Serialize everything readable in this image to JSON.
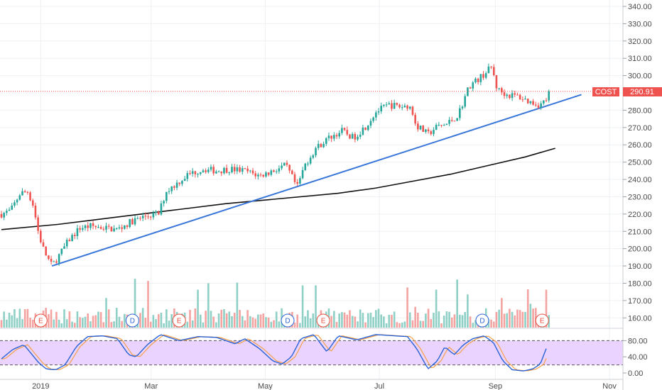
{
  "chart_data": {
    "type": "candlestick",
    "symbol": "COST",
    "last_price": 290.91,
    "last_price_label": "290.91",
    "colors": {
      "up": "#26a69a",
      "down": "#ef5350",
      "trendline": "#3a77d9",
      "ma": "#111111",
      "stoch_k": "#2a62d6",
      "stoch_d": "#f5a04a",
      "stoch_band": "#e6ccff",
      "price_line": "#ef5350",
      "vol_up": "#8fd0c6",
      "vol_down": "#f4a3a0"
    },
    "y_axis": {
      "ticks": [
        "340.00",
        "330.00",
        "320.00",
        "310.00",
        "300.00",
        "290.00",
        "280.00",
        "270.00",
        "260.00",
        "250.00",
        "240.00",
        "230.00",
        "220.00",
        "210.00",
        "200.00",
        "190.00",
        "180.00",
        "170.00",
        "160.00"
      ],
      "ylim": [
        156,
        342
      ]
    },
    "oscillator_axis": {
      "ticks": [
        "80.00",
        "40.00",
        "0.00"
      ],
      "levels": [
        80,
        20
      ],
      "ylim": [
        0,
        100
      ]
    },
    "x_axis": {
      "ticks": [
        {
          "label": "2019",
          "day": 21
        },
        {
          "label": "Mar",
          "day": 80
        },
        {
          "label": "May",
          "day": 141
        },
        {
          "label": "Jul",
          "day": 202
        },
        {
          "label": "Sep",
          "day": 264
        },
        {
          "label": "Nov",
          "day": 325
        }
      ],
      "xlim": [
        0,
        330
      ]
    },
    "anchors": [
      [
        0,
        220
      ],
      [
        5,
        222
      ],
      [
        10,
        232
      ],
      [
        14,
        233
      ],
      [
        17,
        225
      ],
      [
        20,
        208
      ],
      [
        23,
        198
      ],
      [
        27,
        190
      ],
      [
        32,
        198
      ],
      [
        36,
        205
      ],
      [
        42,
        212
      ],
      [
        48,
        213
      ],
      [
        55,
        212
      ],
      [
        62,
        211
      ],
      [
        70,
        216
      ],
      [
        78,
        219
      ],
      [
        84,
        220
      ],
      [
        88,
        233
      ],
      [
        94,
        238
      ],
      [
        100,
        243
      ],
      [
        108,
        246
      ],
      [
        115,
        245
      ],
      [
        122,
        246
      ],
      [
        130,
        245
      ],
      [
        138,
        242
      ],
      [
        145,
        245
      ],
      [
        152,
        248
      ],
      [
        156,
        240
      ],
      [
        158,
        235
      ],
      [
        162,
        248
      ],
      [
        168,
        258
      ],
      [
        175,
        264
      ],
      [
        182,
        268
      ],
      [
        188,
        264
      ],
      [
        195,
        271
      ],
      [
        200,
        279
      ],
      [
        207,
        283
      ],
      [
        214,
        282
      ],
      [
        218,
        283
      ],
      [
        222,
        271
      ],
      [
        228,
        266
      ],
      [
        232,
        270
      ],
      [
        238,
        272
      ],
      [
        244,
        277
      ],
      [
        250,
        294
      ],
      [
        255,
        298
      ],
      [
        260,
        303
      ],
      [
        262,
        305
      ],
      [
        265,
        292
      ],
      [
        270,
        289
      ],
      [
        276,
        288
      ],
      [
        282,
        285
      ],
      [
        288,
        283
      ],
      [
        292,
        287
      ],
      [
        294,
        288
      ]
    ],
    "ma_200": [
      [
        0,
        211
      ],
      [
        30,
        214
      ],
      [
        60,
        218
      ],
      [
        90,
        222
      ],
      [
        120,
        226
      ],
      [
        150,
        229
      ],
      [
        180,
        232
      ],
      [
        200,
        235
      ],
      [
        220,
        239
      ],
      [
        240,
        243
      ],
      [
        260,
        248
      ],
      [
        280,
        253
      ],
      [
        296,
        258
      ]
    ],
    "trendline": {
      "from": [
        27,
        190
      ],
      "to": [
        310,
        289
      ]
    },
    "events": [
      {
        "label": "E",
        "day": 21
      },
      {
        "label": "D",
        "day": 70
      },
      {
        "label": "E",
        "day": 95
      },
      {
        "label": "D",
        "day": 153
      },
      {
        "label": "E",
        "day": 172
      },
      {
        "label": "D",
        "day": 257
      },
      {
        "label": "E",
        "day": 289
      }
    ],
    "stochastic_anchors": [
      [
        0,
        35
      ],
      [
        6,
        58
      ],
      [
        12,
        70
      ],
      [
        17,
        42
      ],
      [
        20,
        25
      ],
      [
        24,
        10
      ],
      [
        29,
        8
      ],
      [
        34,
        20
      ],
      [
        40,
        65
      ],
      [
        46,
        90
      ],
      [
        54,
        92
      ],
      [
        62,
        85
      ],
      [
        68,
        45
      ],
      [
        72,
        40
      ],
      [
        78,
        70
      ],
      [
        85,
        95
      ],
      [
        95,
        80
      ],
      [
        105,
        90
      ],
      [
        115,
        88
      ],
      [
        125,
        72
      ],
      [
        130,
        85
      ],
      [
        138,
        60
      ],
      [
        145,
        30
      ],
      [
        150,
        22
      ],
      [
        155,
        40
      ],
      [
        160,
        85
      ],
      [
        167,
        95
      ],
      [
        174,
        52
      ],
      [
        180,
        92
      ],
      [
        190,
        82
      ],
      [
        200,
        95
      ],
      [
        210,
        92
      ],
      [
        217,
        90
      ],
      [
        222,
        60
      ],
      [
        228,
        10
      ],
      [
        233,
        30
      ],
      [
        237,
        65
      ],
      [
        242,
        45
      ],
      [
        247,
        70
      ],
      [
        252,
        85
      ],
      [
        258,
        92
      ],
      [
        263,
        75
      ],
      [
        268,
        30
      ],
      [
        273,
        8
      ],
      [
        279,
        5
      ],
      [
        284,
        10
      ],
      [
        288,
        22
      ],
      [
        292,
        70
      ]
    ]
  }
}
